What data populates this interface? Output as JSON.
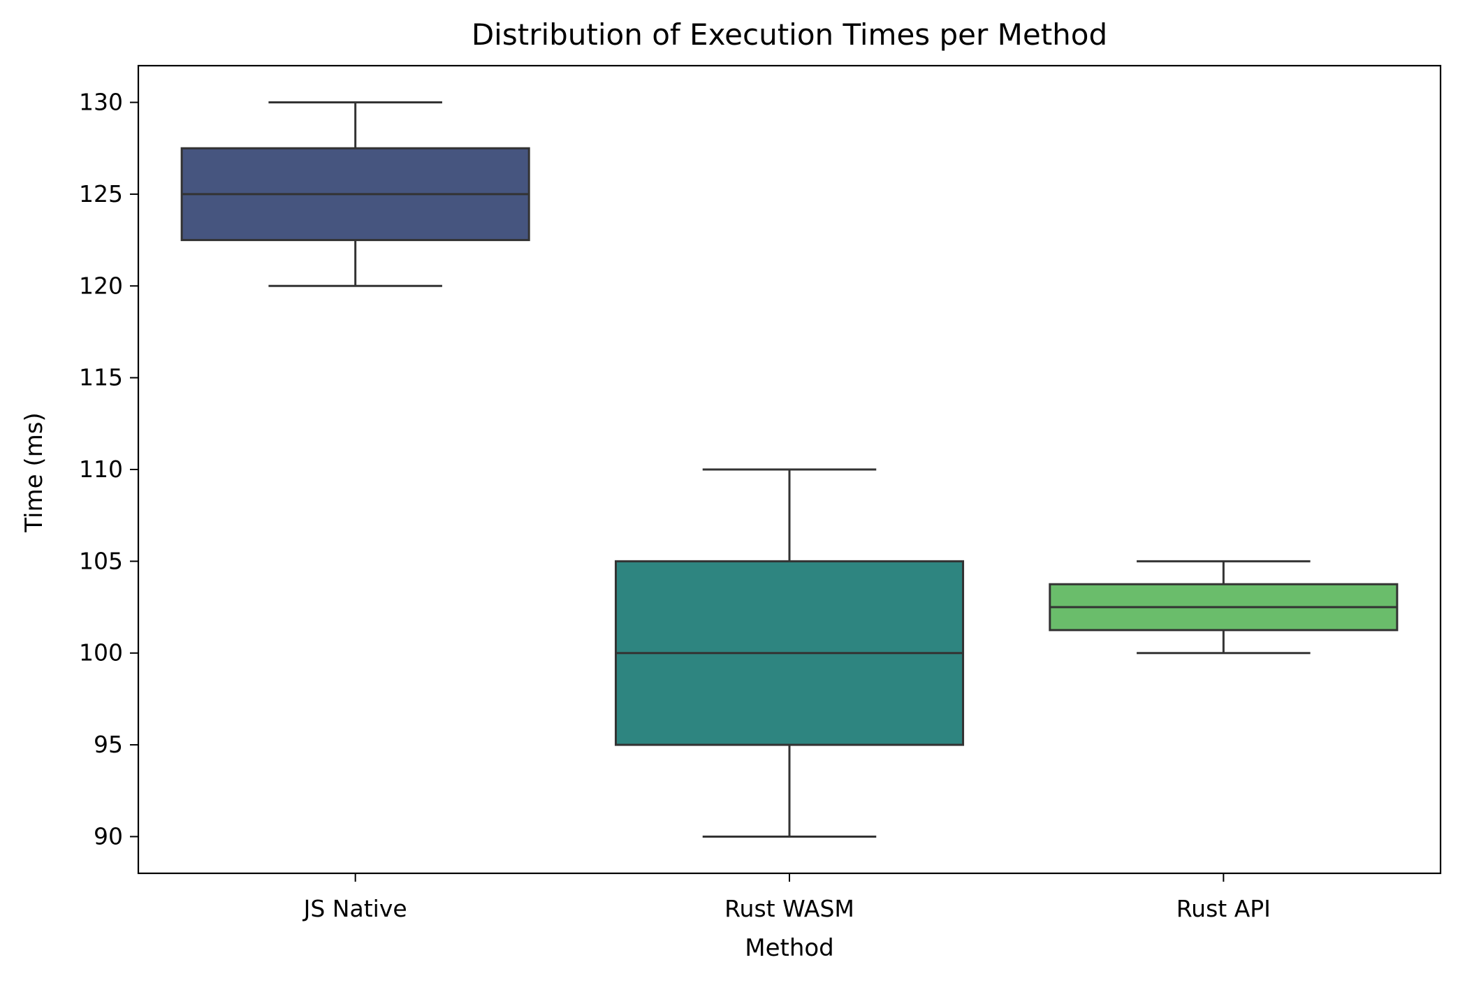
{
  "chart_data": {
    "type": "box",
    "title": "Distribution of Execution Times per Method",
    "xlabel": "Method",
    "ylabel": "Time (ms)",
    "ylim": [
      88,
      132
    ],
    "yticks": [
      90,
      95,
      100,
      105,
      110,
      115,
      120,
      125,
      130
    ],
    "grid": false,
    "categories": [
      "JS Native",
      "Rust WASM",
      "Rust API"
    ],
    "boxes": [
      {
        "category": "JS Native",
        "min": 120,
        "q1": 122.5,
        "median": 125,
        "q3": 127.5,
        "max": 130,
        "color": "#46557f"
      },
      {
        "category": "Rust WASM",
        "min": 90,
        "q1": 95,
        "median": 100,
        "q3": 105,
        "max": 110,
        "color": "#2e8580"
      },
      {
        "category": "Rust API",
        "min": 100,
        "q1": 101.25,
        "median": 102.5,
        "q3": 103.75,
        "max": 105,
        "color": "#6abd6b"
      }
    ],
    "line_color": "#333333"
  }
}
